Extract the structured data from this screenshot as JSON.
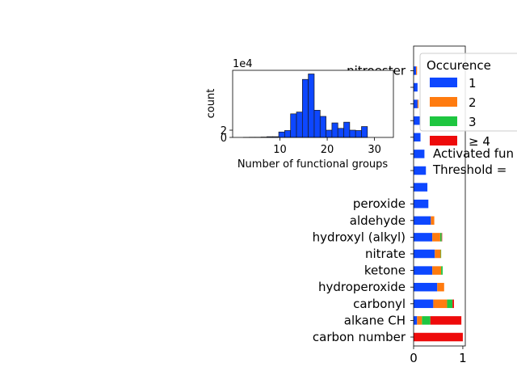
{
  "chart_data": [
    {
      "type": "bar",
      "orientation": "horizontal",
      "stacked": true,
      "categories": [
        "carbon number",
        "alkane CH",
        "carbonyl",
        "hydroperoxide",
        "ketone",
        "nitrate",
        "hydroxyl (alkyl)",
        "aldehyde",
        "peroxide",
        "",
        "",
        "",
        "",
        "",
        "",
        "",
        "nitroester"
      ],
      "series": [
        {
          "name": "1",
          "color": "#0d47ff",
          "values": [
            0,
            0.07,
            0.4,
            0.48,
            0.38,
            0.43,
            0.38,
            0.35,
            0.3,
            0.28,
            0.25,
            0.22,
            0.14,
            0.13,
            0.08,
            0.08,
            0.05
          ]
        },
        {
          "name": "2",
          "color": "#ff7b0f",
          "values": [
            0,
            0.1,
            0.28,
            0.14,
            0.18,
            0.12,
            0.16,
            0.07,
            0,
            0,
            0,
            0,
            0,
            0,
            0.02,
            0,
            0.02
          ]
        },
        {
          "name": "3",
          "color": "#1ec640",
          "values": [
            0,
            0.17,
            0.11,
            0,
            0.03,
            0.01,
            0.03,
            0,
            0,
            0,
            0,
            0,
            0,
            0,
            0,
            0,
            0
          ]
        },
        {
          "name": "≥ 4",
          "color": "#ee0b0b",
          "values": [
            1.0,
            0.63,
            0.03,
            0,
            0,
            0,
            0.01,
            0,
            0,
            0,
            0,
            0,
            0,
            0,
            0,
            0,
            0
          ]
        }
      ],
      "xlim": [
        0,
        1.05
      ],
      "xticks": [
        0,
        1
      ],
      "legend": {
        "title": "Occurence",
        "placement": "upper-right",
        "entries": [
          "1",
          "2",
          "3",
          "≥ 4"
        ],
        "notes": [
          "Activated fun",
          "Threshold ="
        ]
      }
    },
    {
      "type": "histogram",
      "xlabel": "Number of functional groups",
      "ylabel": "count",
      "offset_label": "1e4",
      "color": "#0d47ff",
      "bin_width": 1.25,
      "bins_start": 1,
      "counts": [
        0.0,
        0.02,
        0.05,
        0.05,
        0.1,
        0.2,
        0.2,
        1.5,
        1.9,
        6.5,
        7.0,
        16.0,
        17.5,
        7.5,
        5.8,
        2.0,
        4.0,
        2.5,
        4.2,
        2.0,
        1.9,
        3.0
      ],
      "xlim": [
        0,
        34
      ],
      "ylim": [
        0,
        18.5
      ],
      "xticks": [
        "10",
        "20",
        "30"
      ],
      "yticks": [
        "0",
        "2"
      ]
    }
  ]
}
